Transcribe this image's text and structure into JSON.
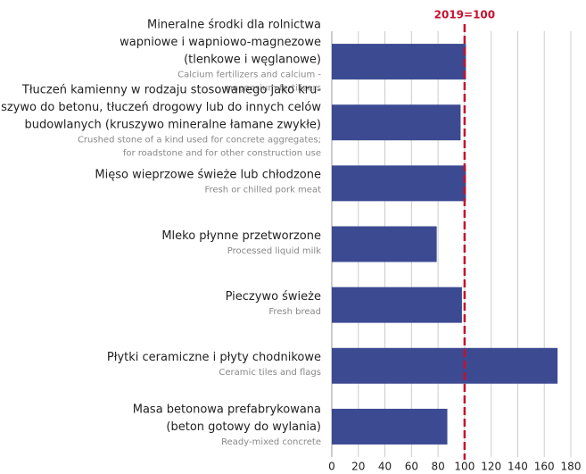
{
  "chart_data": {
    "type": "barh",
    "categories": [
      {
        "pl": [
          "Mineralne środki dla rolnictwa",
          "wapniowe i wapniowo-magnezowe",
          "(tlenkowe i węglanowe)"
        ],
        "en": [
          "Calcium fertilizers and calcium -",
          "magnesium fertilizers"
        ]
      },
      {
        "pl": [
          "Tłuczeń kamienny w rodzaju stosowanego jako kru-",
          "szywo do betonu, tłuczeń drogowy lub do innych celów",
          "budowlanych (kruszywo mineralne łamane zwykłe)"
        ],
        "en": [
          "Crushed stone of a kind used for concrete aggregates;",
          "for roadstone and for other construction use"
        ]
      },
      {
        "pl": [
          "Mięso wieprzowe świeże lub chłodzone"
        ],
        "en": [
          "Fresh or chilled pork meat"
        ]
      },
      {
        "pl": [
          "Mleko płynne przetworzone"
        ],
        "en": [
          "Processed liquid milk"
        ]
      },
      {
        "pl": [
          "Pieczywo świeże"
        ],
        "en": [
          "Fresh bread"
        ]
      },
      {
        "pl": [
          "Płytki ceramiczne i płyty chodnikowe"
        ],
        "en": [
          "Ceramic tiles and flags"
        ]
      },
      {
        "pl": [
          "Masa betonowa prefabrykowana",
          "(beton gotowy do wylania)"
        ],
        "en": [
          "Ready-mixed concrete"
        ]
      }
    ],
    "values": [
      101,
      97,
      101,
      79,
      98,
      170,
      87
    ],
    "color": "#3c4a92",
    "xlim": [
      0,
      180
    ],
    "xticks": [
      0,
      20,
      40,
      60,
      80,
      100,
      120,
      140,
      160,
      180
    ],
    "grid": true,
    "reference_line": {
      "value": 100,
      "label": "2019=100",
      "color": "#c8102e"
    }
  }
}
